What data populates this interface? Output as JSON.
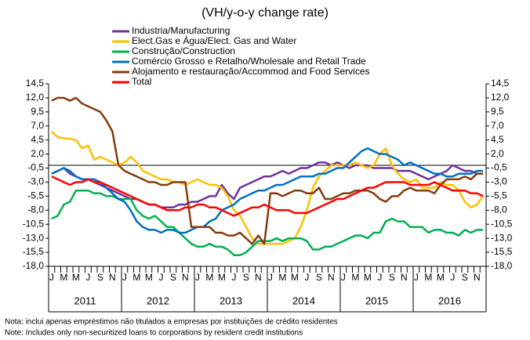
{
  "chart_data": {
    "type": "line",
    "title": "(VH/y-o-y change rate)",
    "categories": [
      "J",
      null,
      "M",
      null,
      "M",
      null,
      "J",
      null,
      "S",
      null,
      "N",
      null,
      "J",
      null,
      "M",
      null,
      "M",
      null,
      "J",
      null,
      "S",
      null,
      "N",
      null,
      "J",
      null,
      "M",
      null,
      "M",
      null,
      "J",
      null,
      "S",
      null,
      "N",
      null,
      "J",
      null,
      "M",
      null,
      "M",
      null,
      "J",
      null,
      "S",
      null,
      "N",
      null,
      "J",
      null,
      "M",
      null,
      "M",
      null,
      "J",
      null,
      "S",
      null,
      "N",
      null,
      "J",
      null,
      "M",
      null,
      "M",
      null,
      "J",
      null,
      "S",
      null,
      "N",
      null
    ],
    "years": [
      "2011",
      "2012",
      "2013",
      "2014",
      "2015",
      "2016"
    ],
    "ylim": [
      -18,
      14.5
    ],
    "yticks": [
      {
        "value": 14.5,
        "label": "14,5"
      },
      {
        "value": 12,
        "label": "12,0"
      },
      {
        "value": 9.5,
        "label": "9,5"
      },
      {
        "value": 7,
        "label": "7,0"
      },
      {
        "value": 4.5,
        "label": "4,5"
      },
      {
        "value": 2,
        "label": "2,0"
      },
      {
        "value": -0.5,
        "label": "-0,5"
      },
      {
        "value": -3,
        "label": "-3,0"
      },
      {
        "value": -5.5,
        "label": "-5,5"
      },
      {
        "value": -8,
        "label": "-8,0"
      },
      {
        "value": -10.5,
        "label": "-10,5"
      },
      {
        "value": -13,
        "label": "-13,0"
      },
      {
        "value": -15.5,
        "label": "-15,5"
      },
      {
        "value": -18,
        "label": "-18,0"
      }
    ],
    "grid": false,
    "series": [
      {
        "name": "Industria/Manufacturing",
        "color": "#7030a0",
        "values": [
          -1.5,
          -1,
          -0.5,
          -1.5,
          -2,
          -2.5,
          -2.5,
          -3,
          -3.5,
          -4,
          -4.5,
          -5,
          -5.5,
          -6,
          -6,
          -6.5,
          -7,
          -7,
          -7.5,
          -7.5,
          -7.5,
          -7,
          -7,
          -6.5,
          -6.5,
          -6,
          -5.5,
          -5.5,
          -3.5,
          -5,
          -6,
          -4,
          -3.5,
          -3,
          -2.5,
          -2,
          -2,
          -1.5,
          -1,
          -1.5,
          -1,
          -0.5,
          -0.5,
          0,
          0.5,
          0.5,
          0,
          0.5,
          0,
          -0.5,
          0,
          0,
          0,
          -0.5,
          -0.5,
          -0.5,
          -0.5,
          -1,
          -1,
          -1,
          -1.5,
          -2,
          -2.5,
          -2,
          -1.5,
          -1,
          0,
          -0.5,
          -1,
          -1,
          -1.5,
          -1.5
        ]
      },
      {
        "name": "Elect.Gas e Água/Elect. Gas and Water",
        "color": "#ffc000",
        "values": [
          6,
          5,
          4.8,
          4.7,
          4.5,
          3,
          3.5,
          1,
          1.5,
          1,
          0.5,
          0,
          0.5,
          1.5,
          0.5,
          -1,
          -1.5,
          -2,
          -2.5,
          -2.5,
          -3,
          -3,
          -3.5,
          -3,
          -2.5,
          -3,
          -3.5,
          -3.5,
          -4,
          -5.5,
          -8,
          -9,
          -11,
          -13,
          -14,
          -14,
          -14,
          -14,
          -14,
          -13.5,
          -13,
          -11,
          -8,
          -4,
          -2,
          -1,
          0,
          0,
          0,
          0,
          0.5,
          0,
          -0.5,
          0,
          2,
          3,
          0,
          -1.5,
          -2.5,
          -3,
          -2.5,
          -4,
          -4,
          -4,
          -3,
          -3.5,
          -3.5,
          -4.5,
          -6.5,
          -7.5,
          -7,
          -5.5
        ]
      },
      {
        "name": "Construção/Construction",
        "color": "#00b050",
        "values": [
          -9.5,
          -9,
          -7,
          -6.5,
          -4.5,
          -4.5,
          -4.5,
          -5,
          -5,
          -5.5,
          -5.5,
          -6,
          -6,
          -6,
          -8,
          -9,
          -9.5,
          -9,
          -10,
          -11,
          -11,
          -12,
          -13,
          -14,
          -14.5,
          -14.5,
          -14,
          -14.5,
          -14.5,
          -15,
          -16,
          -16,
          -15.5,
          -14.5,
          -13.5,
          -13.5,
          -13.5,
          -13,
          -13.5,
          -13,
          -13,
          -13,
          -13.5,
          -15,
          -15,
          -14.5,
          -14.5,
          -14,
          -13.5,
          -13,
          -12.5,
          -12.5,
          -13,
          -12,
          -12,
          -10,
          -9.5,
          -10,
          -10,
          -11,
          -11,
          -11,
          -12,
          -11.5,
          -11.5,
          -12,
          -12,
          -12.5,
          -11.5,
          -12,
          -11.5,
          -11.5
        ]
      },
      {
        "name": "Comércio Grosso e Retalho/Wholesale and Retail Trade",
        "color": "#0070c0",
        "values": [
          -1.5,
          -1,
          -0.5,
          -1,
          -2,
          -2.5,
          -2.5,
          -2.5,
          -3,
          -4,
          -5,
          -6,
          -6.5,
          -8,
          -10,
          -11,
          -11.5,
          -11.5,
          -12,
          -11.5,
          -11.5,
          -12,
          -12,
          -11.5,
          -11,
          -11,
          -10,
          -9.5,
          -8,
          -7.5,
          -7,
          -6,
          -5.5,
          -5,
          -4.5,
          -4.5,
          -4,
          -3.5,
          -3.5,
          -3,
          -2.5,
          -2,
          -2,
          -2,
          -1.5,
          -1.5,
          -1,
          -0.5,
          -0.5,
          0.5,
          1.5,
          2.5,
          3,
          2.5,
          2,
          2,
          1.5,
          1,
          0,
          0.5,
          0,
          -0.5,
          -1,
          -1.5,
          -1.5,
          -2,
          -2,
          -1.5,
          -1.5,
          -1.5,
          -1,
          -1
        ]
      },
      {
        "name": "Alojamento e restauração/Accommod and Food Services",
        "color": "#843c0c",
        "values": [
          11.5,
          12,
          12,
          11.5,
          12,
          11,
          10.5,
          10,
          9.5,
          8,
          6,
          0,
          -1,
          -1.5,
          -2,
          -2.5,
          -3,
          -3,
          -3.5,
          -3.5,
          -3,
          -3,
          -3,
          -11,
          -11,
          -11,
          -11,
          -12,
          -12,
          -12.5,
          -12.5,
          -12,
          -13,
          -14,
          -12.5,
          -14,
          -5,
          -5,
          -5.5,
          -5,
          -4.5,
          -4.5,
          -5,
          -5,
          -4,
          -6,
          -6,
          -5.5,
          -5,
          -5,
          -4.5,
          -4.5,
          -4.5,
          -5,
          -6,
          -6.5,
          -5.5,
          -5.5,
          -4.5,
          -4,
          -4.5,
          -4.5,
          -4.5,
          -5,
          -3.5,
          -2.5,
          -2.5,
          -2.5,
          -2,
          -2.5,
          -1.5,
          -1.5
        ]
      },
      {
        "name": "Total",
        "color": "#ff0000",
        "values": [
          -2,
          -2.5,
          -3,
          -3.5,
          -3,
          -3,
          -2.5,
          -3,
          -3,
          -3.5,
          -4,
          -4.5,
          -5,
          -5.5,
          -6,
          -6.5,
          -7,
          -7,
          -7.5,
          -8,
          -8,
          -8,
          -7.5,
          -7.5,
          -7,
          -7,
          -7.5,
          -7.5,
          -8,
          -8.5,
          -9,
          -8.5,
          -8,
          -7.5,
          -7.5,
          -7,
          -7.5,
          -8,
          -8,
          -8,
          -8.5,
          -8.5,
          -8.5,
          -8,
          -7.5,
          -7,
          -6.5,
          -6,
          -6,
          -5.5,
          -5,
          -4.5,
          -4,
          -4,
          -3.5,
          -3,
          -3,
          -3,
          -3,
          -3.5,
          -3.5,
          -3.5,
          -3.5,
          -3,
          -3.5,
          -4,
          -4.5,
          -4.5,
          -4.5,
          -5,
          -5,
          -5.5
        ]
      }
    ],
    "notes": [
      "Nota: inclui apenas empréstimos não titulados a empresas por instituições de crédito residentes",
      "Note: Includes only non-securitized loans to corporations by resident credit institutions"
    ]
  }
}
